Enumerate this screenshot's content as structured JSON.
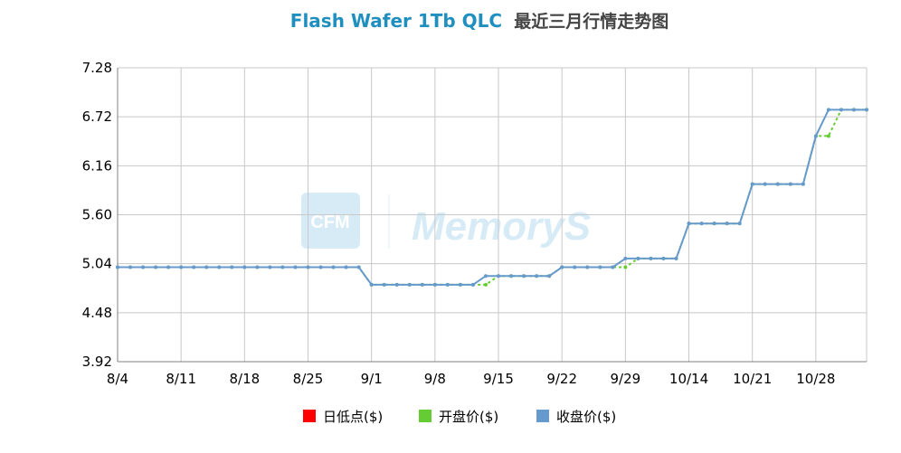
{
  "chart_data": {
    "type": "line",
    "title_en": "Flash Wafer 1Tb QLC",
    "title_cn": "最近三月行情走势图",
    "watermark_text": "MemoryS",
    "watermark_logo": "CFM",
    "ylim": [
      3.92,
      7.28
    ],
    "yticks": [
      "7.28",
      "6.72",
      "6.16",
      "5.60",
      "5.04",
      "4.48",
      "3.92"
    ],
    "ytick_values": [
      7.28,
      6.72,
      6.16,
      5.6,
      5.04,
      4.48,
      3.92
    ],
    "xticks": [
      "8/4",
      "8/11",
      "8/18",
      "8/25",
      "9/1",
      "9/8",
      "9/15",
      "9/22",
      "9/29",
      "10/14",
      "10/21",
      "10/28"
    ],
    "xtick_index": [
      0,
      5,
      10,
      15,
      20,
      25,
      30,
      35,
      40,
      45,
      50,
      55
    ],
    "n_points": 60,
    "grid": true,
    "legend_position": "bottom",
    "series": [
      {
        "name": "日低点($)",
        "color": "#ff0000",
        "values": []
      },
      {
        "name": "开盘价($)",
        "color": "#66cc33",
        "dashed": true,
        "values": [
          5.0,
          5.0,
          5.0,
          5.0,
          5.0,
          5.0,
          5.0,
          5.0,
          5.0,
          5.0,
          5.0,
          5.0,
          5.0,
          5.0,
          5.0,
          5.0,
          5.0,
          5.0,
          5.0,
          5.0,
          4.8,
          4.8,
          4.8,
          4.8,
          4.8,
          4.8,
          4.8,
          4.8,
          4.8,
          4.8,
          4.9,
          4.9,
          4.9,
          4.9,
          4.9,
          5.0,
          5.0,
          5.0,
          5.0,
          5.0,
          5.0,
          5.1,
          5.1,
          5.1,
          5.1,
          5.5,
          5.5,
          5.5,
          5.5,
          5.5,
          5.95,
          5.95,
          5.95,
          5.95,
          5.95,
          6.5,
          6.5,
          6.8,
          6.8,
          6.8
        ]
      },
      {
        "name": "收盘价($)",
        "color": "#6699cc",
        "values": [
          5.0,
          5.0,
          5.0,
          5.0,
          5.0,
          5.0,
          5.0,
          5.0,
          5.0,
          5.0,
          5.0,
          5.0,
          5.0,
          5.0,
          5.0,
          5.0,
          5.0,
          5.0,
          5.0,
          5.0,
          4.8,
          4.8,
          4.8,
          4.8,
          4.8,
          4.8,
          4.8,
          4.8,
          4.8,
          4.9,
          4.9,
          4.9,
          4.9,
          4.9,
          4.9,
          5.0,
          5.0,
          5.0,
          5.0,
          5.0,
          5.1,
          5.1,
          5.1,
          5.1,
          5.1,
          5.5,
          5.5,
          5.5,
          5.5,
          5.5,
          5.95,
          5.95,
          5.95,
          5.95,
          5.95,
          6.5,
          6.8,
          6.8,
          6.8,
          6.8
        ]
      }
    ]
  }
}
